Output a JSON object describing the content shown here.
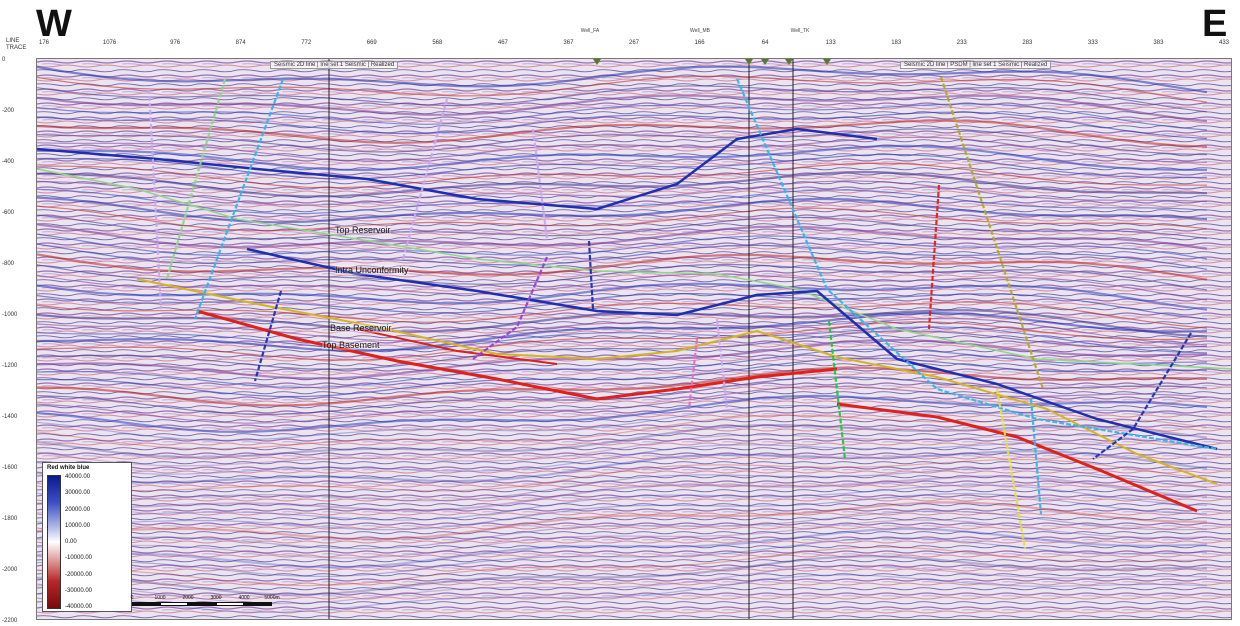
{
  "directions": {
    "west": "W",
    "east": "E"
  },
  "axis_header": {
    "line": "LINE",
    "trace": "TRACE"
  },
  "top_ticks": [
    "176",
    "1076",
    "976",
    "874",
    "772",
    "669",
    "568",
    "467",
    "367",
    "267",
    "166",
    "64",
    "133",
    "183",
    "233",
    "283",
    "333",
    "383",
    "433"
  ],
  "depth_ticks": [
    "0",
    "-200",
    "-400",
    "-600",
    "-800",
    "-1000",
    "-1200",
    "-1400",
    "-1600",
    "-1800",
    "-2000",
    "-2200"
  ],
  "panel_titles": [
    "Seismic 2D line | Ine set 1 Seismic | Realized",
    "Seismic 2D line | PSDM | line set 1 Seismic | Realized"
  ],
  "well_notes": [
    "Well_FA",
    "Well_MB",
    "Well_TK"
  ],
  "horizon_labels": [
    "Top Reservoir",
    "Intra Unconformity",
    "Base Reservoir",
    "Top Basement"
  ],
  "colorbar": {
    "title": "Red white blue",
    "values": [
      "40000.00",
      "30000.00",
      "20000.00",
      "10000.00",
      "0.00",
      "-10000.00",
      "-20000.00",
      "-30000.00",
      "-40000.00"
    ]
  },
  "scalebar": {
    "labels": [
      "0",
      "1000",
      "2000",
      "3000",
      "4000",
      "5000m"
    ]
  },
  "colors": {
    "horizon_red": "#e0201a",
    "horizon_blue": "#1f2fb0",
    "horizon_yellow": "#d4b41e",
    "horizon_green": "#8fd68a",
    "fault_cyan": "#33b5e8",
    "fault_purple": "#9b3fd1",
    "fault_olive": "#b3a82a",
    "fault_green": "#27c43a",
    "fault_lilac": "#c9a8f0"
  }
}
